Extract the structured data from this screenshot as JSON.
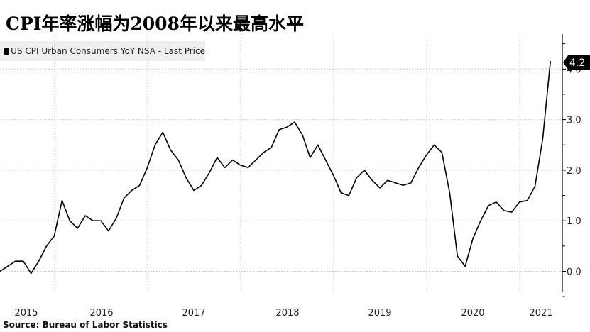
{
  "title": "CPI年率涨幅为2008年以来最高水平",
  "legend": {
    "label": "US CPI Urban Consumers YoY NSA - Last Price",
    "color": "#000000"
  },
  "source": "Source: Bureau of Labor Statistics",
  "last_value_badge": "4.2",
  "colors": {
    "line": "#000000",
    "grid": "#cccccc",
    "legend_bg": "#efefef",
    "badge_bg": "#000000"
  },
  "chart_data": {
    "type": "line",
    "title": "CPI年率涨幅为2008年以来最高水平",
    "xlabel": "",
    "ylabel": "",
    "x_tick_labels": [
      "2015",
      "2016",
      "2017",
      "2018",
      "2019",
      "2020",
      "2021"
    ],
    "y_tick_labels": [
      "0.0",
      "1.0",
      "2.0",
      "3.0",
      "4.0"
    ],
    "ylim": [
      -0.4,
      4.6
    ],
    "grid": true,
    "legend_position": "top-left",
    "y_axis_position": "right",
    "series": [
      {
        "name": "US CPI Urban Consumers YoY NSA - Last Price",
        "x_start": "2015-05",
        "frequency": "monthly",
        "x": [
          "2015-05",
          "2015-06",
          "2015-07",
          "2015-08",
          "2015-09",
          "2015-10",
          "2015-11",
          "2015-12",
          "2016-01",
          "2016-02",
          "2016-03",
          "2016-04",
          "2016-05",
          "2016-06",
          "2016-07",
          "2016-08",
          "2016-09",
          "2016-10",
          "2016-11",
          "2016-12",
          "2017-01",
          "2017-02",
          "2017-03",
          "2017-04",
          "2017-05",
          "2017-06",
          "2017-07",
          "2017-08",
          "2017-09",
          "2017-10",
          "2017-11",
          "2017-12",
          "2018-01",
          "2018-02",
          "2018-03",
          "2018-04",
          "2018-05",
          "2018-06",
          "2018-07",
          "2018-08",
          "2018-09",
          "2018-10",
          "2018-11",
          "2018-12",
          "2019-01",
          "2019-02",
          "2019-03",
          "2019-04",
          "2019-05",
          "2019-06",
          "2019-07",
          "2019-08",
          "2019-09",
          "2019-10",
          "2019-11",
          "2019-12",
          "2020-01",
          "2020-02",
          "2020-03",
          "2020-04",
          "2020-05",
          "2020-06",
          "2020-07",
          "2020-08",
          "2020-09",
          "2020-10",
          "2020-11",
          "2020-12",
          "2021-01",
          "2021-02",
          "2021-03",
          "2021-04"
        ],
        "values": [
          0.0,
          0.1,
          0.2,
          0.2,
          -0.04,
          0.2,
          0.5,
          0.7,
          1.4,
          1.0,
          0.85,
          1.1,
          1.0,
          1.0,
          0.8,
          1.05,
          1.45,
          1.6,
          1.7,
          2.05,
          2.5,
          2.75,
          2.4,
          2.2,
          1.85,
          1.6,
          1.7,
          1.95,
          2.25,
          2.05,
          2.2,
          2.1,
          2.05,
          2.2,
          2.35,
          2.45,
          2.8,
          2.85,
          2.95,
          2.7,
          2.25,
          2.5,
          2.2,
          1.9,
          1.55,
          1.5,
          1.85,
          2.0,
          1.8,
          1.65,
          1.8,
          1.75,
          1.7,
          1.75,
          2.05,
          2.3,
          2.5,
          2.35,
          1.55,
          0.3,
          0.1,
          0.65,
          1.0,
          1.3,
          1.37,
          1.2,
          1.17,
          1.37,
          1.4,
          1.68,
          2.62,
          4.16
        ]
      }
    ]
  }
}
